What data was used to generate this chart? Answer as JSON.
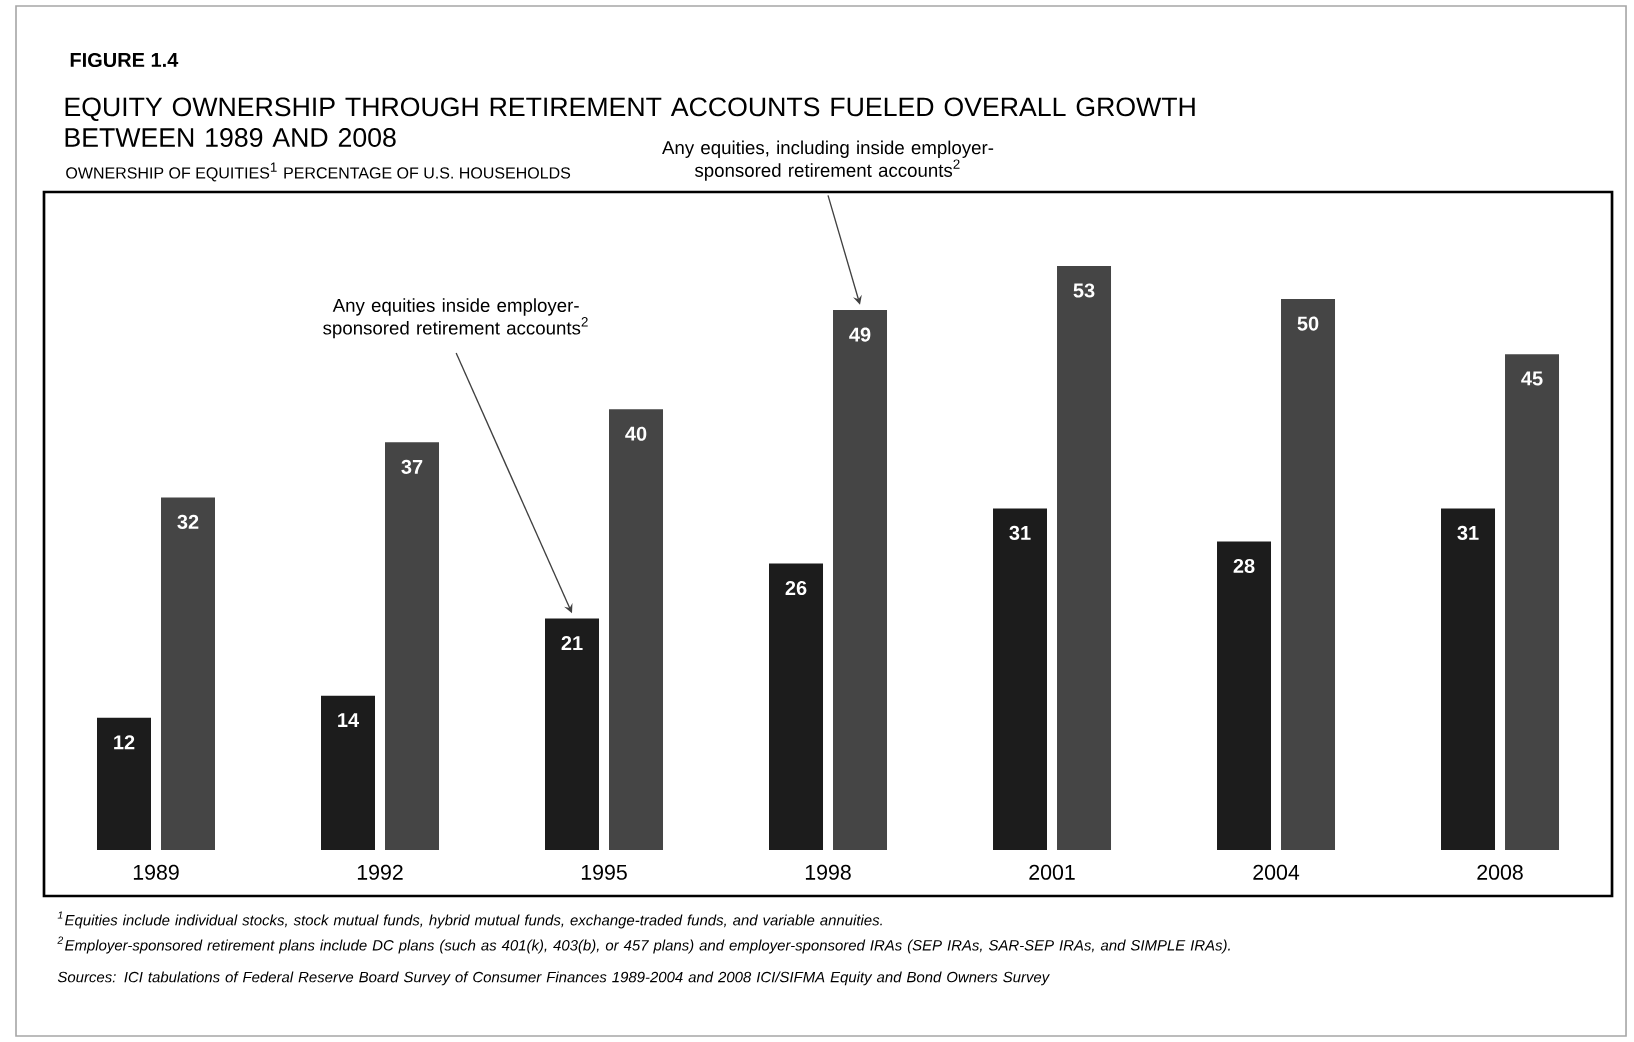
{
  "chart_data": {
    "type": "bar",
    "title": "EQUITY OWNERSHIP THROUGH RETIREMENT ACCOUNTS FUELED OVERALL GROWTH BETWEEN 1989 AND 2008",
    "subtitle": "OWNERSHIP OF EQUITIES$^{1}$ PERCENTAGE OF U.S. HOUSEHOLDS",
    "categories": [
      "1989",
      "1992",
      "1995",
      "1998",
      "2001",
      "2004",
      "2008"
    ],
    "series": [
      {
        "name": "Any equities inside employer-sponsored retirement accounts$^{2}$",
        "color": "#1c1c1c",
        "values": [
          12,
          14,
          21,
          26,
          31,
          28,
          31
        ]
      },
      {
        "name": "Any equities, including inside employer-sponsored retirement accounts$^{2}$",
        "color": "#454545",
        "values": [
          32,
          37,
          40,
          49,
          53,
          50,
          45
        ]
      }
    ],
    "data_labels": true,
    "annotations": [
      "FIGURE 1.4",
      "$^{1}$Equities include individual stocks, stock mutual funds, hybrid mutual funds, exchange-traded funds, and variable annuities.",
      "$^{2}$Employer-sponsored retirement plans include DC plans (such as 401(k), 403(b), or 457 plans) and employer-sponsored IRAs (SEP IRAs, SAR-SEP IRAs, and SIMPLE IRAs).",
      "Sources: ICI tabulations of Federal Reserve Board Survey of Consumer Finances 1989-2004 and 2008 ICI/SIFMA Equity and Bond Owners Survey"
    ]
  }
}
